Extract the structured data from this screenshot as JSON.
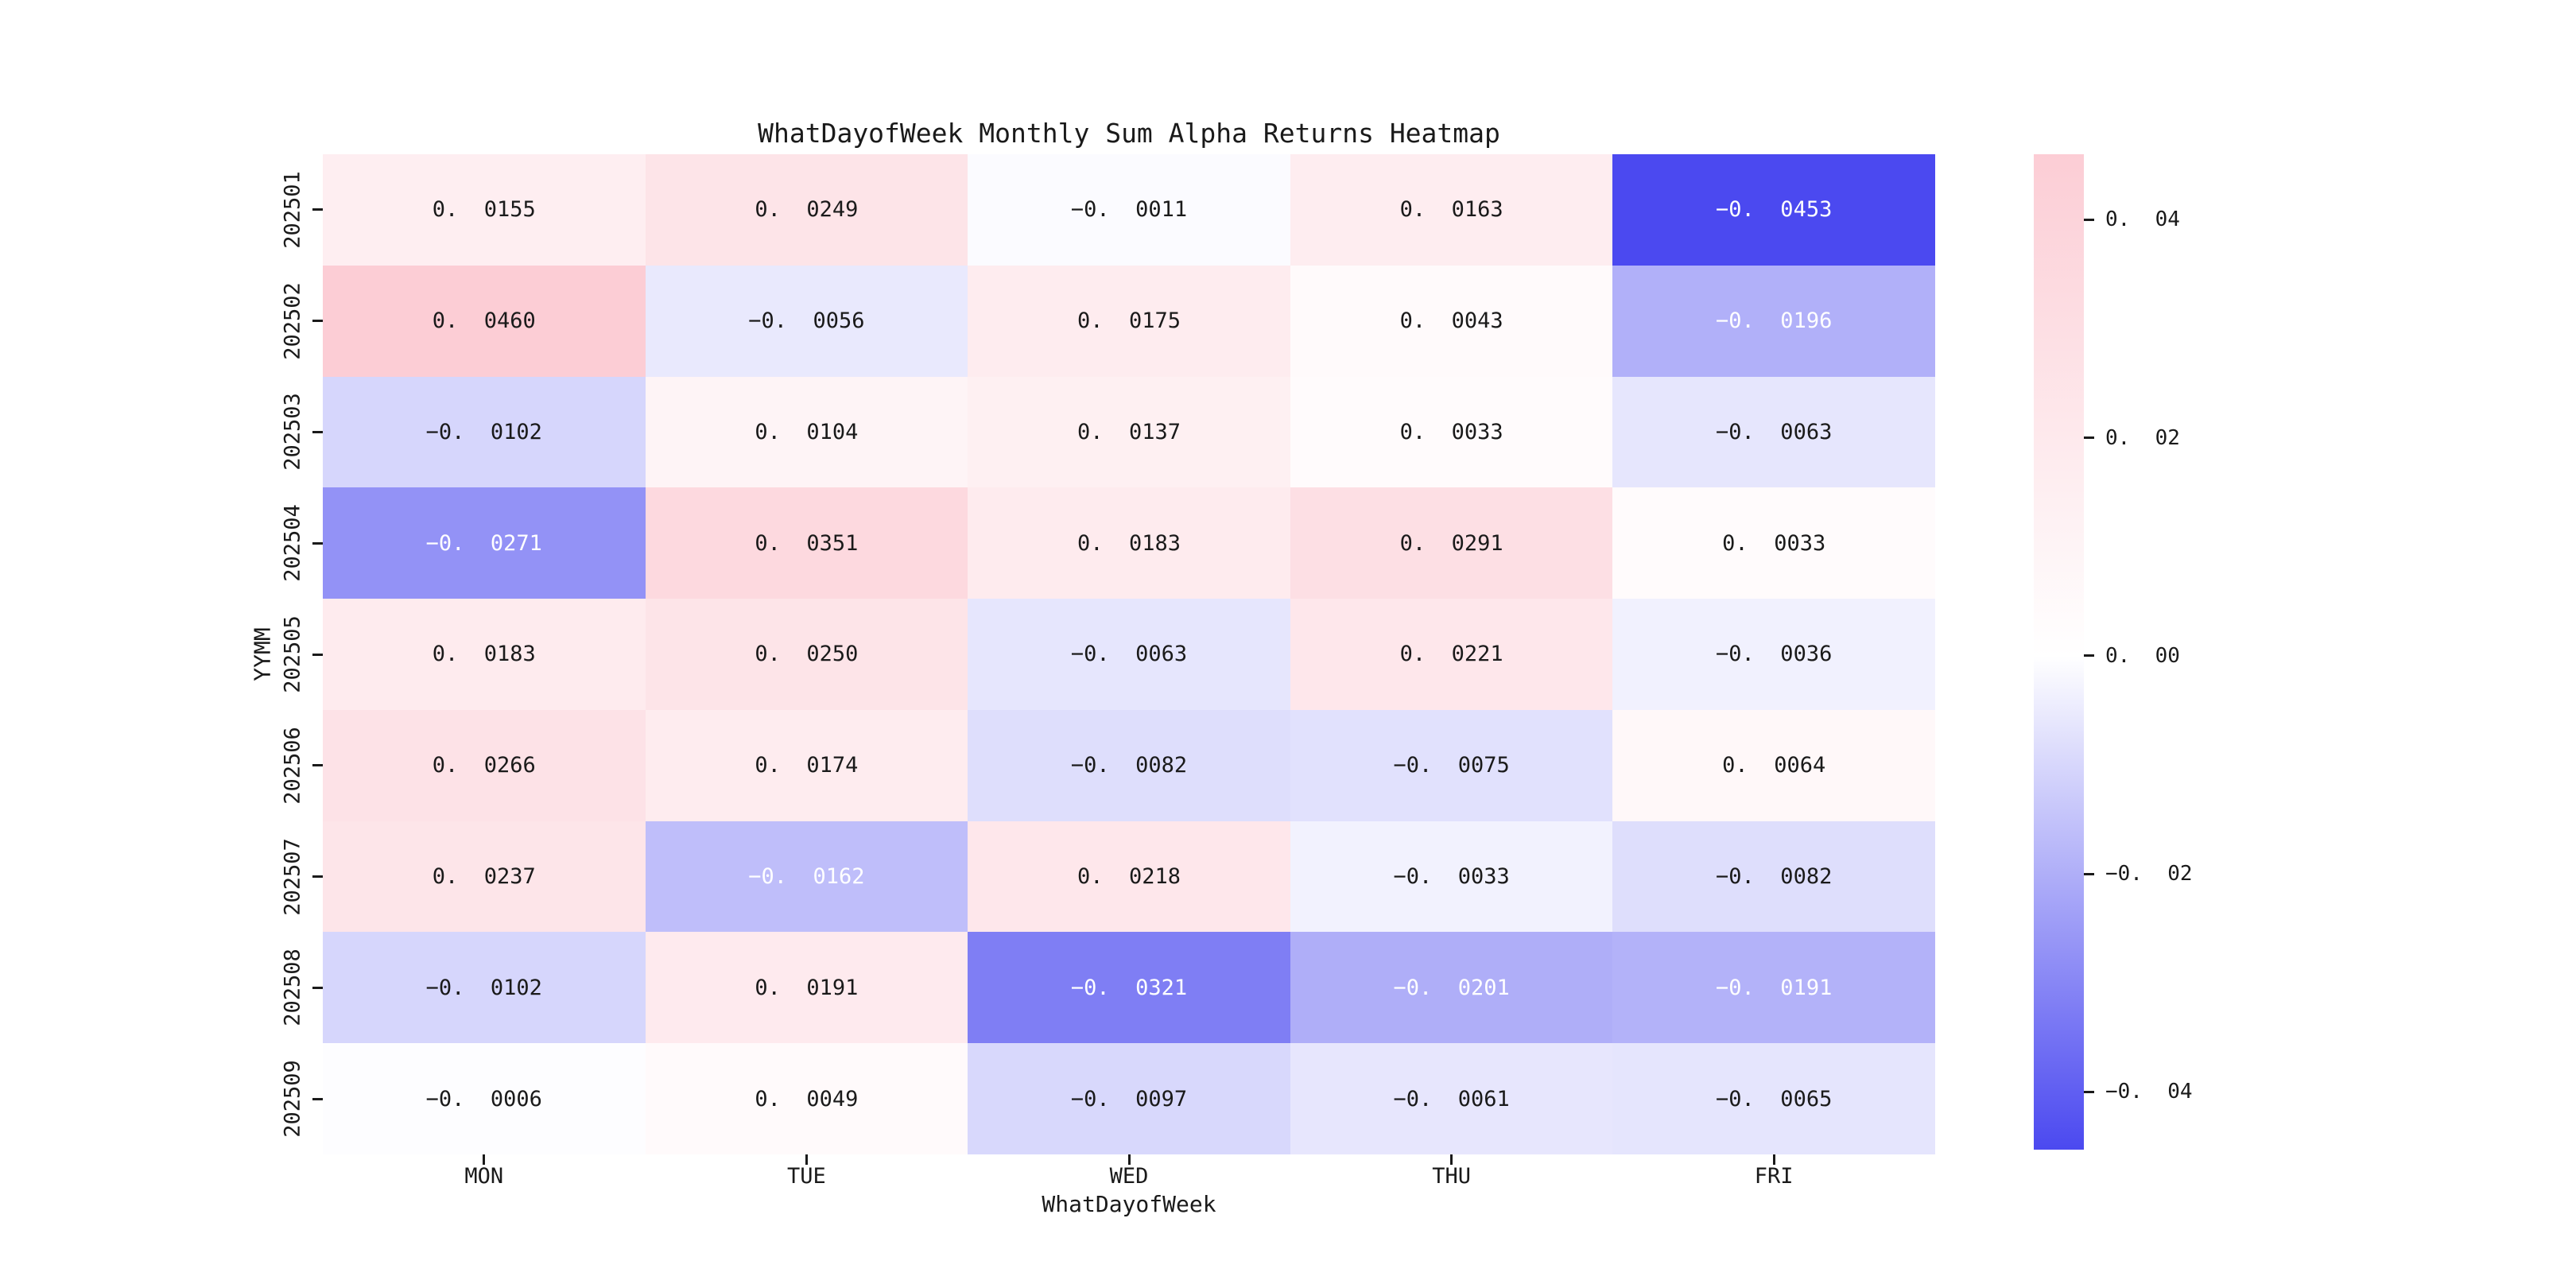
{
  "figure": {
    "background": "#ffffff"
  },
  "chart_data": {
    "type": "heatmap",
    "title": "WhatDayofWeek Monthly Sum Alpha Returns Heatmap",
    "xlabel": "WhatDayofWeek",
    "ylabel": "YYMM",
    "columns": [
      "MON",
      "TUE",
      "WED",
      "THU",
      "FRI"
    ],
    "rows": [
      "202501",
      "202502",
      "202503",
      "202504",
      "202505",
      "202506",
      "202507",
      "202508",
      "202509"
    ],
    "values": [
      [
        0.0155,
        0.0249,
        -0.0011,
        0.0163,
        -0.0453
      ],
      [
        0.046,
        -0.0056,
        0.0175,
        0.0043,
        -0.0196
      ],
      [
        -0.0102,
        0.0104,
        0.0137,
        0.0033,
        -0.0063
      ],
      [
        -0.0271,
        0.0351,
        0.0183,
        0.0291,
        0.0033
      ],
      [
        0.0183,
        0.025,
        -0.0063,
        0.0221,
        -0.0036
      ],
      [
        0.0266,
        0.0174,
        -0.0082,
        -0.0075,
        0.0064
      ],
      [
        0.0237,
        -0.0162,
        0.0218,
        -0.0033,
        -0.0082
      ],
      [
        -0.0102,
        0.0191,
        -0.0321,
        -0.0201,
        -0.0191
      ],
      [
        -0.0006,
        0.0049,
        -0.0097,
        -0.0061,
        -0.0065
      ]
    ],
    "vmin": -0.0453,
    "vmax": 0.046,
    "annotation_decimals": 4,
    "white_text_threshold": -0.016,
    "grid": false,
    "legend_position": "right-colorbar",
    "colorbar": {
      "ticks": [
        0.04,
        0.02,
        0.0,
        -0.02,
        -0.04
      ],
      "tick_decimals": 2
    },
    "colors": {
      "positive_end": "#fccdd5",
      "zero": "#ffffff",
      "negative_end": "#4b49f0",
      "annotation_dark": "#1a1a1a",
      "annotation_light": "#ffffff"
    }
  }
}
